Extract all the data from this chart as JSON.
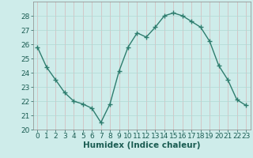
{
  "x": [
    0,
    1,
    2,
    3,
    4,
    5,
    6,
    7,
    8,
    9,
    10,
    11,
    12,
    13,
    14,
    15,
    16,
    17,
    18,
    19,
    20,
    21,
    22,
    23
  ],
  "y": [
    25.8,
    24.4,
    23.5,
    22.6,
    22.0,
    21.8,
    21.5,
    20.5,
    21.8,
    24.1,
    25.8,
    26.8,
    26.5,
    27.2,
    28.0,
    28.2,
    28.0,
    27.6,
    27.2,
    26.2,
    24.5,
    23.5,
    22.1,
    21.7
  ],
  "line_color": "#2e7d6e",
  "bg_color": "#ceecea",
  "grid_color": "#b0d8d4",
  "xlabel": "Humidex (Indice chaleur)",
  "xlim": [
    -0.5,
    23.5
  ],
  "ylim": [
    20,
    29
  ],
  "yticks": [
    20,
    21,
    22,
    23,
    24,
    25,
    26,
    27,
    28
  ],
  "xticks": [
    0,
    1,
    2,
    3,
    4,
    5,
    6,
    7,
    8,
    9,
    10,
    11,
    12,
    13,
    14,
    15,
    16,
    17,
    18,
    19,
    20,
    21,
    22,
    23
  ],
  "marker": "+",
  "markersize": 4,
  "linewidth": 1.0,
  "xlabel_fontsize": 7.5,
  "tick_fontsize": 6.5
}
